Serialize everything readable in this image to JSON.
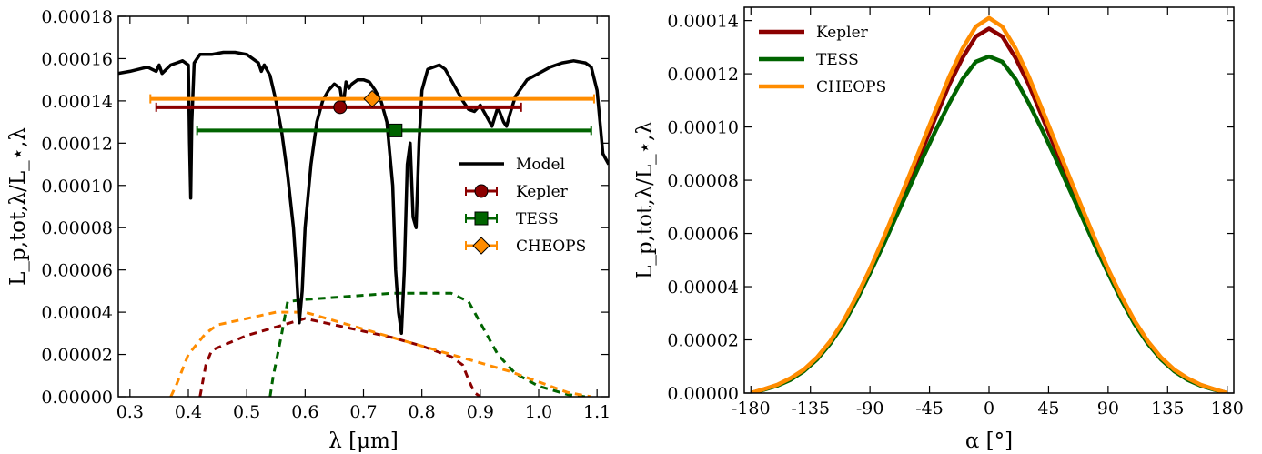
{
  "chart_data": [
    {
      "type": "line",
      "xlabel": "λ [μm]",
      "ylabel": "L_p,tot,λ/L_⋆,λ",
      "xlim": [
        0.28,
        1.12
      ],
      "ylim": [
        0,
        0.00018
      ],
      "xticks": [
        "0.3",
        "0.4",
        "0.5",
        "0.6",
        "0.7",
        "0.8",
        "0.9",
        "1.0",
        "1.1"
      ],
      "yticks": [
        "0.00000",
        "0.00002",
        "0.00004",
        "0.00006",
        "0.00008",
        "0.00010",
        "0.00012",
        "0.00014",
        "0.00016",
        "0.00018"
      ],
      "legend_position": "center-right",
      "legend": [
        "Model",
        "Kepler",
        "TESS",
        "CHEOPS"
      ],
      "colors": {
        "Model": "#000000",
        "Kepler": "#8b0000",
        "TESS": "#006400",
        "CHEOPS": "#ff8c00"
      },
      "model": {
        "name": "Model",
        "x": [
          0.28,
          0.3,
          0.33,
          0.345,
          0.35,
          0.355,
          0.37,
          0.38,
          0.39,
          0.395,
          0.4,
          0.402,
          0.404,
          0.406,
          0.41,
          0.42,
          0.44,
          0.46,
          0.48,
          0.5,
          0.52,
          0.525,
          0.53,
          0.54,
          0.55,
          0.56,
          0.57,
          0.58,
          0.585,
          0.59,
          0.595,
          0.6,
          0.61,
          0.62,
          0.63,
          0.64,
          0.65,
          0.66,
          0.665,
          0.67,
          0.675,
          0.68,
          0.69,
          0.7,
          0.71,
          0.72,
          0.73,
          0.74,
          0.745,
          0.75,
          0.755,
          0.76,
          0.765,
          0.77,
          0.775,
          0.78,
          0.785,
          0.79,
          0.795,
          0.8,
          0.81,
          0.82,
          0.83,
          0.84,
          0.85,
          0.86,
          0.87,
          0.88,
          0.89,
          0.9,
          0.91,
          0.92,
          0.93,
          0.94,
          0.945,
          0.95,
          0.96,
          0.98,
          1.0,
          1.02,
          1.04,
          1.06,
          1.08,
          1.09,
          1.1,
          1.11,
          1.12
        ],
        "y": [
          0.000153,
          0.000154,
          0.000156,
          0.000154,
          0.000157,
          0.000153,
          0.000157,
          0.000158,
          0.000159,
          0.000158,
          0.000157,
          0.00012,
          9.4e-05,
          0.00013,
          0.000158,
          0.000162,
          0.000162,
          0.000163,
          0.000163,
          0.000162,
          0.000158,
          0.000154,
          0.000157,
          0.000152,
          0.00014,
          0.000125,
          0.000105,
          8e-05,
          6e-05,
          3.5e-05,
          5e-05,
          8e-05,
          0.00011,
          0.00013,
          0.00014,
          0.000145,
          0.000148,
          0.000146,
          0.000137,
          0.000149,
          0.000146,
          0.000148,
          0.00015,
          0.00015,
          0.000149,
          0.000145,
          0.00014,
          0.00013,
          0.000115,
          0.0001,
          6e-05,
          4e-05,
          3e-05,
          6e-05,
          0.00011,
          0.00012,
          8.5e-05,
          8e-05,
          0.00012,
          0.000145,
          0.000155,
          0.000156,
          0.000157,
          0.000155,
          0.00015,
          0.000145,
          0.00014,
          0.000136,
          0.000135,
          0.000138,
          0.000133,
          0.000128,
          0.000137,
          0.00013,
          0.000128,
          0.000133,
          0.000142,
          0.00015,
          0.000153,
          0.000156,
          0.000158,
          0.000159,
          0.000158,
          0.000156,
          0.000145,
          0.000115,
          0.00011
        ]
      },
      "bands": [
        {
          "name": "Kepler",
          "x": 0.66,
          "y": 0.000137,
          "xerr": [
            0.345,
            0.97
          ],
          "marker": "circle"
        },
        {
          "name": "TESS",
          "x": 0.755,
          "y": 0.000126,
          "xerr": [
            0.415,
            1.09
          ],
          "marker": "square"
        },
        {
          "name": "CHEOPS",
          "x": 0.715,
          "y": 0.000141,
          "xerr": [
            0.335,
            1.095
          ],
          "marker": "diamond"
        }
      ],
      "response_curves": [
        {
          "name": "Kepler",
          "x": [
            0.42,
            0.43,
            0.44,
            0.5,
            0.55,
            0.6,
            0.65,
            0.7,
            0.75,
            0.8,
            0.85,
            0.87,
            0.88,
            0.89,
            0.9
          ],
          "y": [
            0,
            1.5e-05,
            2.2e-05,
            2.9e-05,
            3.3e-05,
            3.7e-05,
            3.4e-05,
            3.1e-05,
            2.8e-05,
            2.4e-05,
            1.9e-05,
            1.5e-05,
            8e-06,
            2e-06,
            0
          ]
        },
        {
          "name": "TESS",
          "x": [
            0.54,
            0.545,
            0.56,
            0.57,
            0.6,
            0.65,
            0.7,
            0.75,
            0.8,
            0.85,
            0.88,
            0.9,
            0.93,
            0.96,
            1.0,
            1.05,
            1.08
          ],
          "y": [
            0,
            9e-06,
            3e-05,
            4.5e-05,
            4.6e-05,
            4.7e-05,
            4.8e-05,
            4.9e-05,
            4.9e-05,
            4.9e-05,
            4.5e-05,
            3.5e-05,
            2e-05,
            1.1e-05,
            5e-06,
            1e-06,
            0
          ]
        },
        {
          "name": "CHEOPS",
          "x": [
            0.37,
            0.38,
            0.4,
            0.43,
            0.45,
            0.5,
            0.55,
            0.6,
            0.65,
            0.7,
            0.75,
            0.8,
            0.85,
            0.9,
            0.95,
            1.0,
            1.05,
            1.09
          ],
          "y": [
            0,
            6e-06,
            2e-05,
            3e-05,
            3.4e-05,
            3.7e-05,
            4e-05,
            4e-05,
            3.6e-05,
            3.2e-05,
            2.8e-05,
            2.4e-05,
            2e-05,
            1.6e-05,
            1.2e-05,
            7e-06,
            2e-06,
            0
          ]
        }
      ]
    },
    {
      "type": "line",
      "xlabel": "α [°]",
      "ylabel": "L_p,tot,λ/L_⋆,λ",
      "xlim": [
        -185,
        185
      ],
      "ylim": [
        0,
        0.000145
      ],
      "xticks": [
        "-180",
        "-135",
        "-90",
        "-45",
        "0",
        "45",
        "90",
        "135",
        "180"
      ],
      "yticks": [
        "0.00000",
        "0.00002",
        "0.00004",
        "0.00006",
        "0.00008",
        "0.00010",
        "0.00012",
        "0.00014"
      ],
      "legend_position": "top-left",
      "legend": [
        "Kepler",
        "TESS",
        "CHEOPS"
      ],
      "colors": {
        "Kepler": "#8b0000",
        "TESS": "#006400",
        "CHEOPS": "#ff8c00"
      },
      "x": [
        -180,
        -170,
        -160,
        -150,
        -140,
        -130,
        -120,
        -110,
        -100,
        -90,
        -80,
        -70,
        -60,
        -50,
        -40,
        -30,
        -20,
        -10,
        0,
        10,
        20,
        30,
        40,
        50,
        60,
        70,
        80,
        90,
        100,
        110,
        120,
        130,
        140,
        150,
        160,
        170,
        180
      ],
      "series": [
        {
          "name": "Kepler",
          "values": [
            0,
            1.4e-06,
            3e-06,
            5.4e-06,
            8.5e-06,
            1.3e-05,
            1.9e-05,
            2.65e-05,
            3.55e-05,
            4.55e-05,
            5.65e-05,
            6.8e-05,
            8e-05,
            9.2e-05,
            0.000104,
            0.000116,
            0.000126,
            0.000134,
            0.000137,
            0.000134,
            0.000126,
            0.000116,
            0.000104,
            9.2e-05,
            8e-05,
            6.8e-05,
            5.65e-05,
            4.55e-05,
            3.55e-05,
            2.65e-05,
            1.9e-05,
            1.3e-05,
            8.5e-06,
            5.4e-06,
            3e-06,
            1.4e-06,
            0
          ]
        },
        {
          "name": "TESS",
          "values": [
            0,
            1.3e-06,
            2.8e-06,
            5e-06,
            8.2e-06,
            1.27e-05,
            1.86e-05,
            2.6e-05,
            3.5e-05,
            4.5e-05,
            5.55e-05,
            6.65e-05,
            7.75e-05,
            8.85e-05,
            9.9e-05,
            0.000109,
            0.000118,
            0.0001245,
            0.0001265,
            0.0001245,
            0.000118,
            0.000109,
            9.9e-05,
            8.85e-05,
            7.75e-05,
            6.65e-05,
            5.55e-05,
            4.5e-05,
            3.5e-05,
            2.6e-05,
            1.86e-05,
            1.27e-05,
            8.2e-06,
            5e-06,
            2.8e-06,
            1.3e-06,
            0
          ]
        },
        {
          "name": "CHEOPS",
          "values": [
            0,
            1.5e-06,
            3.1e-06,
            5.6e-06,
            8.8e-06,
            1.34e-05,
            1.95e-05,
            2.72e-05,
            3.64e-05,
            4.66e-05,
            5.8e-05,
            7e-05,
            8.22e-05,
            9.45e-05,
            0.0001068,
            0.000119,
            0.0001295,
            0.0001377,
            0.000141,
            0.0001377,
            0.0001295,
            0.000119,
            0.0001068,
            9.45e-05,
            8.22e-05,
            7e-05,
            5.8e-05,
            4.66e-05,
            3.64e-05,
            2.72e-05,
            1.95e-05,
            1.34e-05,
            8.8e-06,
            5.6e-06,
            3.1e-06,
            1.5e-06,
            0
          ]
        }
      ]
    }
  ]
}
